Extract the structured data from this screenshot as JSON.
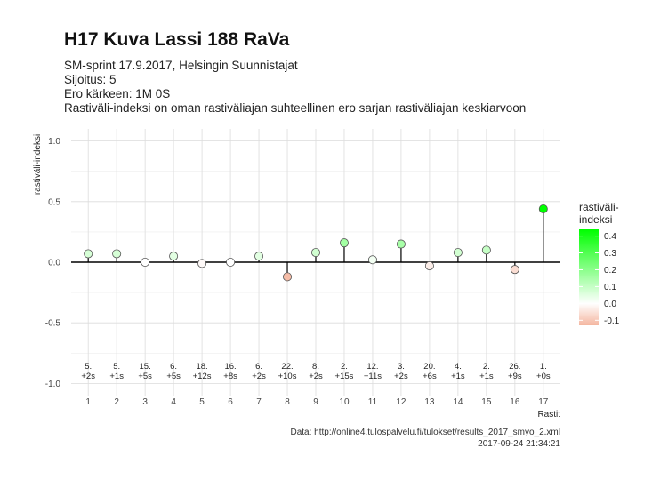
{
  "header": {
    "title": "H17 Kuva Lassi 188 RaVa",
    "subtitle_lines": [
      "SM-sprint 17.9.2017, Helsingin Suunnistajat",
      "Sijoitus: 5",
      "Ero kärkeen: 1M 0S",
      "Rastiväli-indeksi on oman rastiväliajan suhteellinen ero sarjan rastiväliajan keskiarvoon"
    ]
  },
  "chart_data": {
    "type": "lollipop",
    "xlabel": "Rastit",
    "ylabel": "rastiväli-indeksi",
    "x": [
      1,
      2,
      3,
      4,
      5,
      6,
      7,
      8,
      9,
      10,
      11,
      12,
      13,
      14,
      15,
      16,
      17
    ],
    "values": [
      0.07,
      0.07,
      0.0,
      0.05,
      -0.01,
      0.0,
      0.05,
      -0.12,
      0.08,
      0.16,
      0.02,
      0.15,
      -0.03,
      0.08,
      0.1,
      -0.06,
      0.44
    ],
    "rank_labels": [
      "5.",
      "5.",
      "15.",
      "6.",
      "18.",
      "16.",
      "6.",
      "22.",
      "8.",
      "2.",
      "12.",
      "3.",
      "20.",
      "4.",
      "2.",
      "26.",
      "1."
    ],
    "diff_labels": [
      "+2s",
      "+1s",
      "+5s",
      "+5s",
      "+12s",
      "+8s",
      "+2s",
      "+10s",
      "+2s",
      "+15s",
      "+11s",
      "+2s",
      "+6s",
      "+1s",
      "+1s",
      "+9s",
      "+0s"
    ],
    "ylim": [
      -1.1,
      1.1
    ],
    "yticks": [
      "1.0",
      "0.5",
      "0.0",
      "-0.5",
      "-1.0"
    ],
    "ytick_values": [
      1.0,
      0.5,
      0.0,
      -0.5,
      -1.0
    ],
    "grid": true,
    "legend": {
      "title_lines": [
        "rastiväli-",
        "indeksi"
      ],
      "position": "right",
      "ticks": [
        "0.4",
        "0.3",
        "0.2",
        "0.1",
        "0.0",
        "-0.1"
      ],
      "tick_values": [
        0.4,
        0.3,
        0.2,
        0.1,
        0.0,
        -0.1
      ],
      "range": [
        -0.13,
        0.44
      ],
      "colors": {
        "high": "#00ff00",
        "mid": "#ffffff",
        "low": "#f4b6a0"
      }
    },
    "caption_lines": [
      "Data: http://online4.tulospalvelu.fi/tulokset/results_2017_smyo_2.xml",
      "2017-09-24 21:34:21"
    ]
  }
}
